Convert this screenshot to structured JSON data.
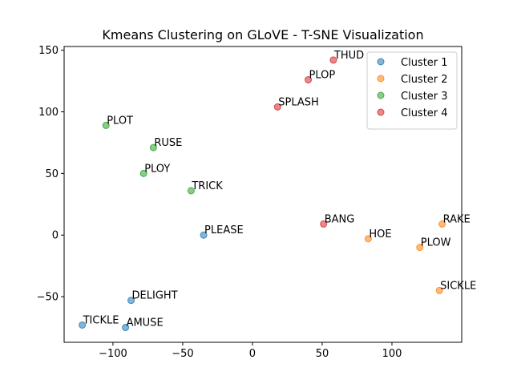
{
  "chart_data": {
    "type": "scatter",
    "title": "Kmeans Clustering on GLoVE - T-SNE Visualization",
    "xlabel": "",
    "ylabel": "",
    "xlim": [
      -135,
      150
    ],
    "ylim": [
      -87,
      153
    ],
    "x_ticks": [
      -100,
      -50,
      0,
      50,
      100
    ],
    "y_ticks": [
      -50,
      0,
      50,
      100,
      150
    ],
    "x_tick_labels": [
      "−100",
      "−50",
      "0",
      "50",
      "100"
    ],
    "y_tick_labels": [
      "−50",
      "0",
      "50",
      "100",
      "150"
    ],
    "grid": false,
    "legend_position": "top-right",
    "series": [
      {
        "name": "Cluster 1",
        "color": "#1f77b4",
        "points": [
          {
            "label": "PLEASE",
            "x": -35,
            "y": 0
          },
          {
            "label": "DELIGHT",
            "x": -87,
            "y": -53
          },
          {
            "label": "TICKLE",
            "x": -122,
            "y": -73
          },
          {
            "label": "AMUSE",
            "x": -91,
            "y": -75
          }
        ]
      },
      {
        "name": "Cluster 2",
        "color": "#ff7f0e",
        "points": [
          {
            "label": "RAKE",
            "x": 136,
            "y": 9
          },
          {
            "label": "HOE",
            "x": 83,
            "y": -3
          },
          {
            "label": "PLOW",
            "x": 120,
            "y": -10
          },
          {
            "label": "SICKLE",
            "x": 134,
            "y": -45
          }
        ]
      },
      {
        "name": "Cluster 3",
        "color": "#2ca02c",
        "points": [
          {
            "label": "PLOT",
            "x": -105,
            "y": 89
          },
          {
            "label": "RUSE",
            "x": -71,
            "y": 71
          },
          {
            "label": "PLOY",
            "x": -78,
            "y": 50
          },
          {
            "label": "TRICK",
            "x": -44,
            "y": 36
          }
        ]
      },
      {
        "name": "Cluster 4",
        "color": "#d62728",
        "points": [
          {
            "label": "THUD",
            "x": 58,
            "y": 142
          },
          {
            "label": "PLOP",
            "x": 40,
            "y": 126
          },
          {
            "label": "SPLASH",
            "x": 18,
            "y": 104
          },
          {
            "label": "BANG",
            "x": 51,
            "y": 9
          }
        ]
      }
    ]
  }
}
